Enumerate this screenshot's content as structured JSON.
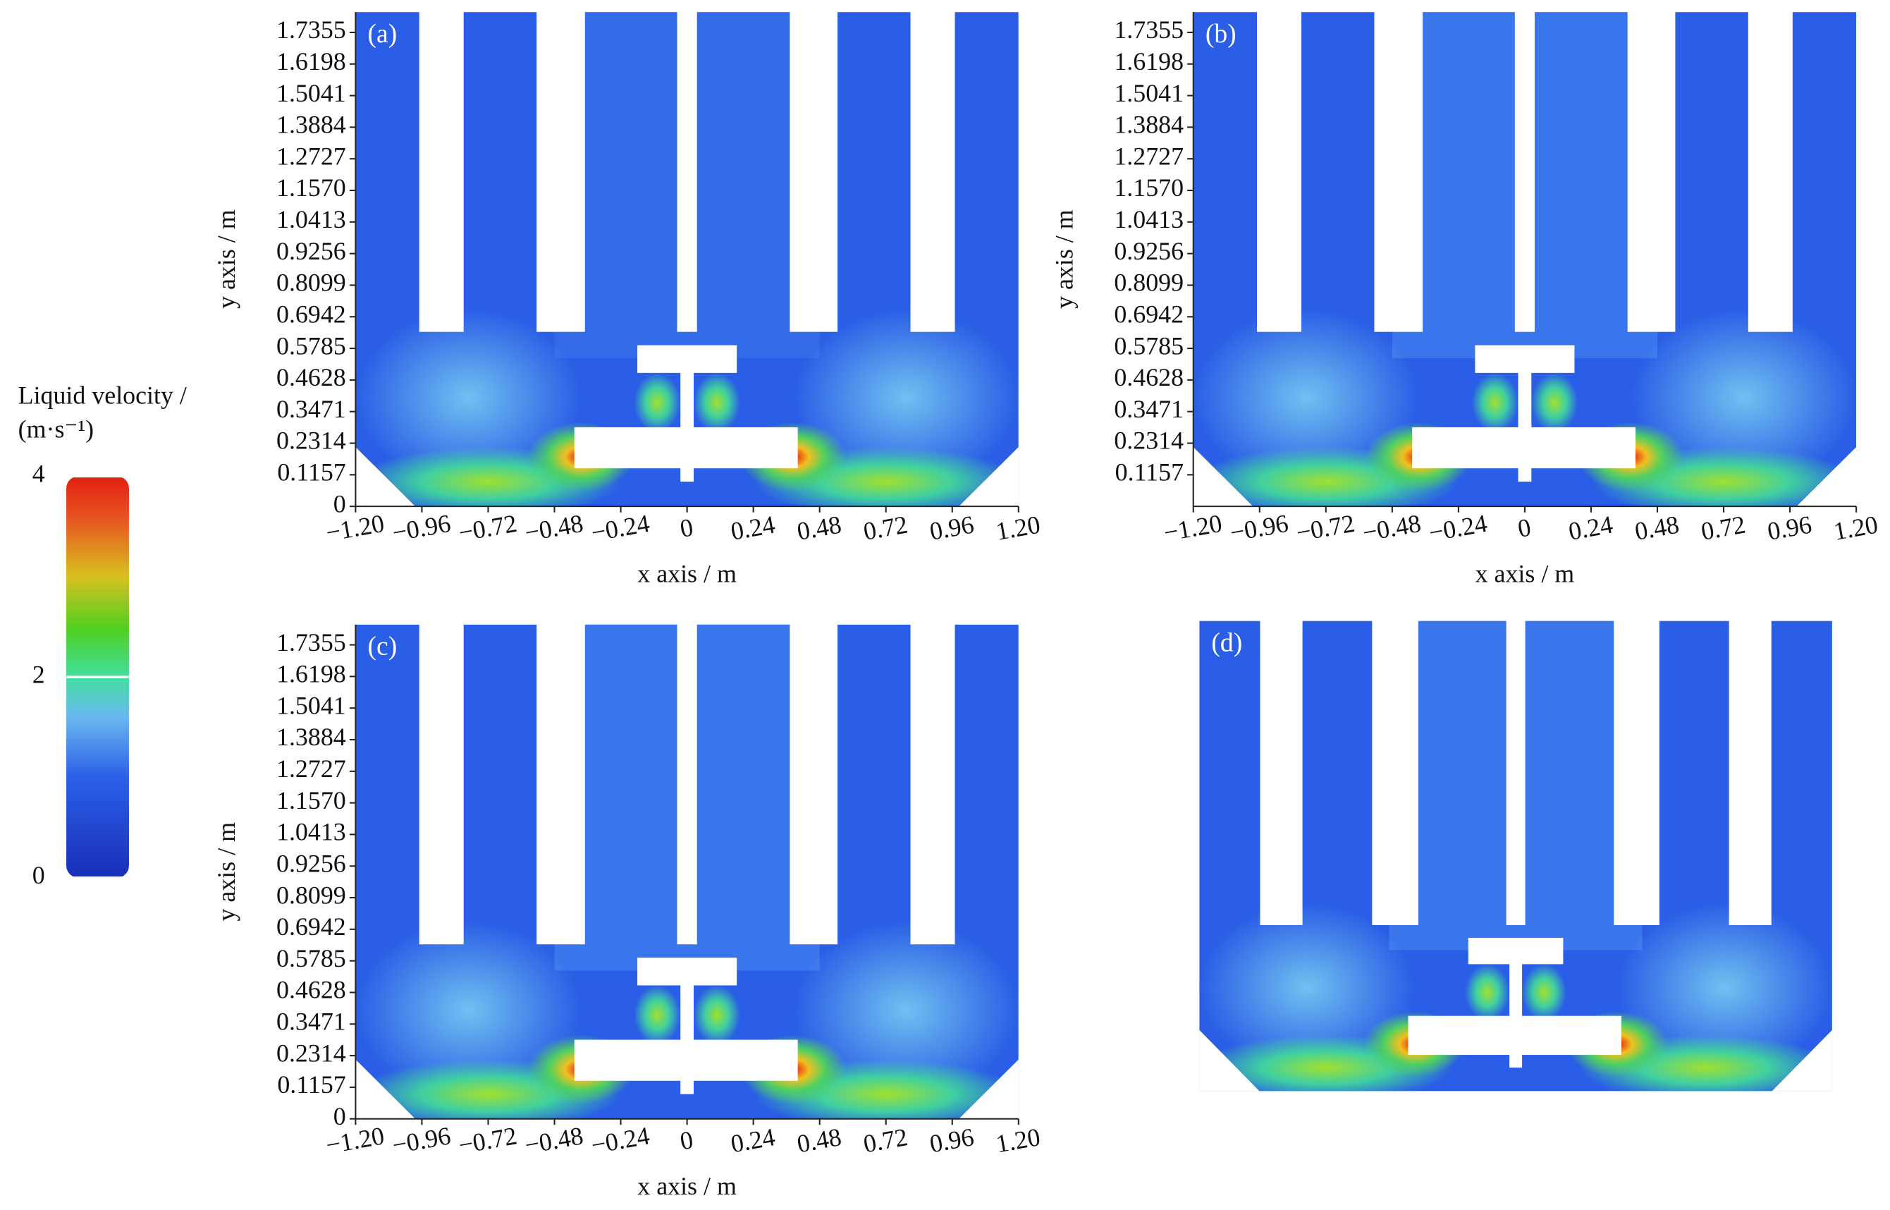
{
  "colorbar": {
    "title": "Liquid velocity /",
    "unit": "(m·s⁻¹)",
    "lim": [
      0,
      4
    ],
    "ticks": [
      0,
      2,
      4
    ]
  },
  "chart_data": [
    {
      "type": "contour",
      "panel_label": "(a)",
      "xlabel": "x axis / m",
      "ylabel": "y axis / m",
      "xlim": [
        -1.2,
        1.2
      ],
      "ylim": [
        0,
        1.81
      ],
      "xticks": [
        {
          "value": -1.2,
          "label": "−1.20"
        },
        {
          "value": -0.96,
          "label": "−0.96"
        },
        {
          "value": -0.72,
          "label": "−0.72"
        },
        {
          "value": -0.48,
          "label": "−0.48"
        },
        {
          "value": -0.24,
          "label": "−0.24"
        },
        0,
        0.24,
        0.48,
        0.72,
        0.96,
        {
          "value": 1.2,
          "label": "1.20"
        }
      ],
      "yticks": [
        0,
        0.1157,
        0.2314,
        0.3471,
        0.4628,
        0.5785,
        0.6942,
        0.8099,
        0.9256,
        1.0413,
        {
          "value": 1.157,
          "label": "1.1570"
        },
        1.2727,
        1.3884,
        1.5041,
        1.6198,
        1.7355
      ]
    },
    {
      "type": "contour",
      "panel_label": "(b)",
      "xlabel": "x axis / m",
      "ylabel": "y axis / m",
      "xlim": [
        -1.2,
        1.2
      ],
      "ylim": [
        0,
        1.81
      ],
      "xticks": [
        {
          "value": -1.2,
          "label": "−1.20"
        },
        {
          "value": -0.96,
          "label": "−0.96"
        },
        {
          "value": -0.72,
          "label": "−0.72"
        },
        {
          "value": -0.48,
          "label": "−0.48"
        },
        {
          "value": -0.24,
          "label": "−0.24"
        },
        0,
        0.24,
        0.48,
        0.72,
        0.96,
        {
          "value": 1.2,
          "label": "1.20"
        }
      ],
      "yticks": [
        0.1157,
        0.2314,
        0.3471,
        0.4628,
        0.5785,
        0.6942,
        0.8099,
        0.9256,
        1.0413,
        {
          "value": 1.157,
          "label": "1.1570"
        },
        1.2727,
        1.3884,
        1.5041,
        1.6198,
        1.7355
      ]
    },
    {
      "type": "contour",
      "panel_label": "(c)",
      "xlabel": "x axis / m",
      "ylabel": "y axis / m",
      "xlim": [
        -1.2,
        1.2
      ],
      "ylim": [
        0,
        1.81
      ],
      "xticks": [
        {
          "value": -1.2,
          "label": "−1.20"
        },
        {
          "value": -0.96,
          "label": "−0.96"
        },
        {
          "value": -0.72,
          "label": "−0.72"
        },
        {
          "value": -0.48,
          "label": "−0.48"
        },
        {
          "value": -0.24,
          "label": "−0.24"
        },
        0,
        0.24,
        0.48,
        0.72,
        0.96,
        {
          "value": 1.2,
          "label": "1.20"
        }
      ],
      "yticks": [
        0,
        0.1157,
        0.2314,
        0.3471,
        0.4628,
        0.5785,
        0.6942,
        0.8099,
        0.9256,
        1.0413,
        {
          "value": 1.157,
          "label": "1.1570"
        },
        1.2727,
        1.3884,
        1.5041,
        1.6198,
        1.7355
      ]
    },
    {
      "type": "contour",
      "panel_label": "(d)"
    }
  ]
}
